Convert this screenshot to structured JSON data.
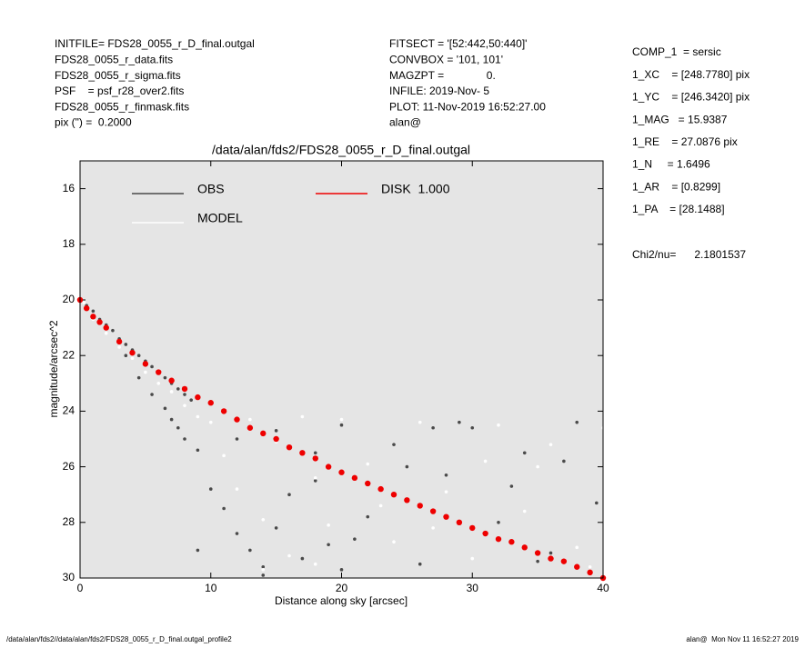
{
  "chart_data": {
    "type": "scatter",
    "title": "/data/alan/fds2/FDS28_0055_r_D_final.outgal",
    "x_label": "Distance along sky [arcsec]",
    "y_label": "magnitude/arcsec^2",
    "xlim": [
      0,
      40
    ],
    "ylim": [
      30,
      15
    ],
    "xticks": [
      0,
      10,
      20,
      30,
      40
    ],
    "yticks": [
      16,
      18,
      20,
      22,
      24,
      26,
      28,
      30
    ],
    "background": "#e5e5e5",
    "header_left": [
      "INITFILE= FDS28_0055_r_D_final.outgal",
      "FDS28_0055_r_data.fits",
      "FDS28_0055_r_sigma.fits",
      "PSF    = psf_r28_over2.fits",
      "FDS28_0055_r_finmask.fits",
      "pix (\") =  0.2000"
    ],
    "header_middle": [
      "FITSECT = '[52:442,50:440]'",
      "CONVBOX = '101, 101'",
      "MAGZPT =              0.",
      "INFILE: 2019-Nov- 5",
      "PLOT: 11-Nov-2019 16:52:27.00",
      "alan@"
    ],
    "side_panel": [
      "COMP_1  = sersic",
      "1_XC    = [248.7780] pix",
      "1_YC    = [246.3420] pix",
      "1_MAG   = 15.9387",
      "1_RE    = 27.0876 pix",
      "1_N     = 1.6496",
      "1_AR    = [0.8299]",
      "1_PA    = [28.1488]"
    ],
    "chi2": "Chi2/nu=      2.1801537",
    "footer_left": "/data/alan/fds2//data/alan/fds2/FDS28_0055_r_D_final.outgal_profile2",
    "footer_right": "alan@  Mon Nov 11 16:52:27 2019",
    "series": [
      {
        "name": "OBS",
        "color": "#4a4a4a",
        "label_color": "#7f7f7f",
        "x": [
          0.5,
          1,
          1.5,
          2,
          2.5,
          3,
          3.5,
          4,
          4.5,
          5,
          5.5,
          6,
          6.5,
          7,
          7.5,
          8,
          8.5,
          3.5,
          4.5,
          5.5,
          6.5,
          7,
          7.5,
          8,
          9,
          10,
          11,
          12,
          13,
          14,
          15,
          16,
          17,
          18,
          19,
          20,
          22,
          24,
          26,
          28,
          30,
          32,
          34,
          36,
          38,
          39.5,
          12,
          15,
          18,
          21,
          25,
          29,
          33,
          37,
          9,
          14,
          20,
          27,
          35
        ],
        "values": [
          20.2,
          20.4,
          20.7,
          20.9,
          21.1,
          21.4,
          21.6,
          21.8,
          22.0,
          22.2,
          22.4,
          22.6,
          22.8,
          23.0,
          23.2,
          23.4,
          23.6,
          22.0,
          22.8,
          23.4,
          23.9,
          24.3,
          24.6,
          25.0,
          25.4,
          26.8,
          27.5,
          28.4,
          29.0,
          29.6,
          28.2,
          27.0,
          29.3,
          26.5,
          28.8,
          24.5,
          27.8,
          25.2,
          29.5,
          26.3,
          24.6,
          28.0,
          25.5,
          29.1,
          24.4,
          27.3,
          25.0,
          24.7,
          25.5,
          28.6,
          26.0,
          24.4,
          26.7,
          25.8,
          29.0,
          29.9,
          29.7,
          24.6,
          29.4
        ]
      },
      {
        "name": "MODEL",
        "color": "#ffffff",
        "label_color": "#ffffff",
        "x": [
          0.3,
          1,
          2,
          3,
          4,
          5,
          6,
          7,
          8,
          9,
          10,
          11,
          12,
          13,
          14,
          15,
          16,
          17,
          18,
          19,
          20,
          22,
          24,
          26,
          28,
          30,
          32,
          34,
          36,
          38,
          40,
          14,
          18,
          23,
          27,
          31,
          35,
          39
        ],
        "values": [
          20.1,
          20.7,
          21.2,
          21.7,
          22.1,
          22.6,
          23.0,
          23.3,
          23.8,
          24.2,
          24.4,
          25.6,
          26.8,
          24.3,
          27.9,
          25.1,
          29.2,
          24.2,
          26.4,
          28.1,
          24.3,
          25.9,
          28.7,
          24.4,
          26.9,
          29.3,
          24.5,
          27.6,
          25.2,
          28.9,
          24.6,
          29.7,
          29.5,
          27.4,
          28.2,
          25.8,
          26.0,
          29.6
        ]
      },
      {
        "name": "DISK  1.000",
        "color": "#ee0000",
        "label_color": "#ee0000",
        "x": [
          0,
          0.5,
          1,
          1.5,
          2,
          3,
          4,
          5,
          6,
          7,
          8,
          9,
          10,
          11,
          12,
          13,
          14,
          15,
          16,
          17,
          18,
          19,
          20,
          21,
          22,
          23,
          24,
          25,
          26,
          27,
          28,
          29,
          30,
          31,
          32,
          33,
          34,
          35,
          36,
          37,
          38,
          39,
          40
        ],
        "values": [
          20.0,
          20.3,
          20.6,
          20.8,
          21.0,
          21.5,
          21.9,
          22.3,
          22.6,
          22.9,
          23.2,
          23.5,
          23.7,
          24.0,
          24.3,
          24.6,
          24.8,
          25.0,
          25.3,
          25.5,
          25.7,
          26.0,
          26.2,
          26.4,
          26.6,
          26.8,
          27.0,
          27.2,
          27.4,
          27.6,
          27.8,
          28.0,
          28.2,
          28.4,
          28.6,
          28.7,
          28.9,
          29.1,
          29.3,
          29.4,
          29.6,
          29.8,
          30.0
        ]
      }
    ]
  }
}
